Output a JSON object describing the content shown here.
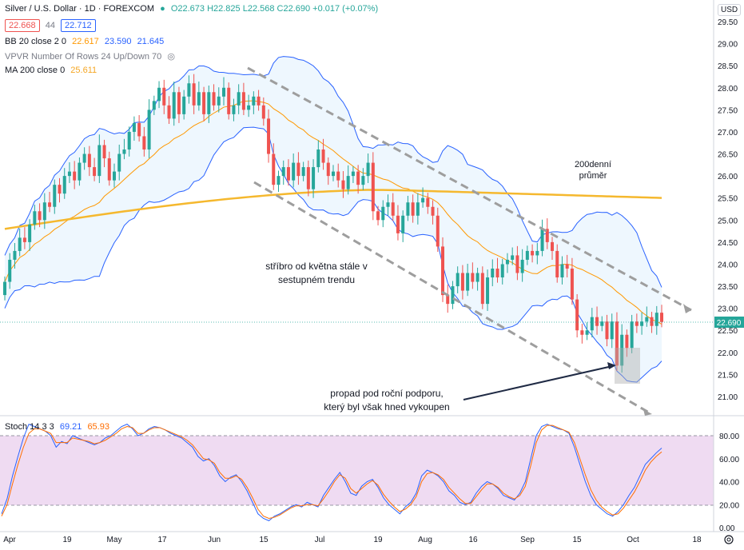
{
  "header": {
    "symbol": "Silver / U.S. Dollar · 1D · FOREXCOM",
    "ohlc": "O22.673 H22.825 L22.568 C22.690 +0.017 (+0.07%)",
    "bid": "22.668",
    "spread": "44",
    "ask": "22.712",
    "bb_label": "BB 20 close 2 0",
    "bb_values": [
      "22.617",
      "23.590",
      "21.645"
    ],
    "vpvr_label": "VPVR Number Of Rows 24 Up/Down 70",
    "ma_label": "MA 200 close 0",
    "ma_value": "25.611",
    "currency": "USD"
  },
  "annotations": {
    "trend_line1": "stříbro od května stále v",
    "trend_line2": "sestupném trendu",
    "ma_line1": "200denní",
    "ma_line2": "průměr",
    "breakout_line1": "propad pod roční podporu,",
    "breakout_line2": "který byl však hned vykoupen"
  },
  "stoch": {
    "label": "Stoch 14 3 3",
    "k": "69.21",
    "d": "65.93"
  },
  "chart_data": [
    {
      "type": "candlestick",
      "symbol": "Silver / U.S. Dollar",
      "interval": "1D",
      "last_price": 22.69,
      "y_ticks": [
        21.0,
        21.5,
        22.0,
        22.5,
        23.0,
        23.5,
        24.0,
        24.5,
        25.0,
        25.5,
        26.0,
        26.5,
        27.0,
        27.5,
        28.0,
        28.5,
        29.0,
        29.5
      ],
      "ylim": [
        20.55,
        29.75
      ],
      "x_labels": [
        "Apr",
        "19",
        "May",
        "17",
        "Jun",
        "15",
        "Jul",
        "19",
        "Aug",
        "16",
        "Sep",
        "15",
        "Oct",
        "18"
      ],
      "closes_approx": [
        23.6,
        24.1,
        24.3,
        24.6,
        24.5,
        24.9,
        25.2,
        25.0,
        25.4,
        25.3,
        25.8,
        25.6,
        26.0,
        26.1,
        25.9,
        26.3,
        26.5,
        26.2,
        26.0,
        26.7,
        26.4,
        25.9,
        26.1,
        26.5,
        26.6,
        27.0,
        27.2,
        26.9,
        26.6,
        27.5,
        27.7,
        28.0,
        27.6,
        27.3,
        27.9,
        27.4,
        27.8,
        28.1,
        27.6,
        27.9,
        27.4,
        27.9,
        27.6,
        27.8,
        28.0,
        27.4,
        27.6,
        27.9,
        27.5,
        27.6,
        27.8,
        27.6,
        27.3,
        26.5,
        25.8,
        26.0,
        26.2,
        25.9,
        26.3,
        26.0,
        26.2,
        25.7,
        26.2,
        26.6,
        26.3,
        26.0,
        26.1,
        25.9,
        25.7,
        26.0,
        26.1,
        25.8,
        26.0,
        26.3,
        25.2,
        25.0,
        25.3,
        25.4,
        25.1,
        24.7,
        25.1,
        25.4,
        25.1,
        25.4,
        25.5,
        25.3,
        25.1,
        24.4,
        23.3,
        23.1,
        23.5,
        23.8,
        23.4,
        23.8,
        23.6,
        23.8,
        23.1,
        23.7,
        23.9,
        23.7,
        24.0,
        24.1,
        24.2,
        23.8,
        24.1,
        24.3,
        24.2,
        24.3,
        24.8,
        24.5,
        24.3,
        23.7,
        24.0,
        23.9,
        23.2,
        22.5,
        22.4,
        22.5,
        22.8,
        22.6,
        22.7,
        22.3,
        22.7,
        21.7,
        22.4,
        22.1,
        22.7,
        22.6,
        22.7,
        22.8,
        22.6,
        22.9,
        22.69
      ],
      "bollinger": {
        "period": 20,
        "mult": 2,
        "mid": 22.617,
        "upper": 23.59,
        "lower": 21.645
      },
      "ma200": 25.611,
      "annotations": [
        "stříbro od května stále v sestupném trendu",
        "200denní průměr",
        "propad pod roční podporu, který byl však hned vykoupen"
      ]
    },
    {
      "type": "line",
      "indicator": "Stoch 14 3 3",
      "ylim": [
        0,
        100
      ],
      "y_ticks": [
        0,
        20,
        40,
        60,
        80
      ],
      "bands": [
        20,
        80
      ],
      "series": [
        {
          "name": "%K",
          "values": [
            12,
            25,
            45,
            62,
            78,
            90,
            88,
            86,
            84,
            80,
            70,
            75,
            73,
            80,
            78,
            76,
            74,
            72,
            74,
            78,
            80,
            84,
            88,
            90,
            86,
            80,
            82,
            86,
            88,
            87,
            85,
            82,
            80,
            78,
            74,
            70,
            62,
            58,
            60,
            54,
            45,
            40,
            44,
            46,
            40,
            32,
            22,
            12,
            8,
            6,
            10,
            12,
            15,
            18,
            20,
            18,
            22,
            20,
            18,
            28,
            35,
            42,
            48,
            40,
            30,
            28,
            36,
            40,
            42,
            35,
            26,
            20,
            16,
            12,
            18,
            22,
            30,
            45,
            50,
            48,
            45,
            40,
            32,
            28,
            22,
            20,
            22,
            30,
            36,
            40,
            38,
            34,
            28,
            26,
            24,
            30,
            40,
            60,
            80,
            88,
            90,
            88,
            86,
            85,
            82,
            70,
            55,
            40,
            28,
            20,
            16,
            12,
            10,
            14,
            20,
            28,
            35,
            45,
            55,
            60,
            65,
            69.21
          ]
        },
        {
          "name": "%D",
          "values": [
            10,
            20,
            38,
            55,
            70,
            82,
            86,
            86,
            84,
            82,
            74,
            74,
            74,
            78,
            77,
            76,
            75,
            73,
            74,
            76,
            79,
            82,
            86,
            88,
            87,
            82,
            82,
            85,
            87,
            87,
            85,
            83,
            81,
            79,
            76,
            72,
            66,
            60,
            59,
            56,
            48,
            43,
            43,
            45,
            42,
            35,
            26,
            16,
            10,
            8,
            9,
            11,
            14,
            17,
            19,
            19,
            20,
            20,
            19,
            25,
            32,
            40,
            46,
            43,
            34,
            30,
            34,
            38,
            41,
            37,
            29,
            23,
            18,
            14,
            16,
            20,
            27,
            40,
            47,
            48,
            46,
            42,
            35,
            30,
            25,
            21,
            21,
            27,
            33,
            38,
            38,
            35,
            30,
            27,
            25,
            28,
            36,
            54,
            74,
            85,
            89,
            89,
            87,
            85,
            83,
            74,
            60,
            46,
            33,
            24,
            18,
            14,
            11,
            12,
            17,
            24,
            31,
            40,
            50,
            57,
            62,
            65.93
          ]
        }
      ]
    }
  ]
}
